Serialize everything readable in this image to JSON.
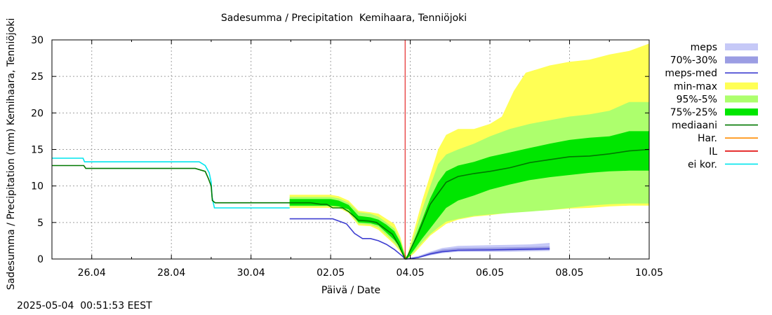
{
  "chart_data": {
    "type": "area",
    "title": "Sadesumma / Precipitation  Kemihaara, Tenniöjoki",
    "xlabel": "Päivä / Date",
    "ylabel": "Sadesumma / Precipitation (mm)  Kemihaara, Tenniöjoki",
    "timestamp": "2025-05-04  00:51:53 EEST",
    "x_unit": "days since 25.04 00:00 (x tick labels printed as dates)",
    "xlim": [
      0,
      15
    ],
    "ylim": [
      0,
      30
    ],
    "x_ticks": [
      {
        "x": 1,
        "label": "26.04"
      },
      {
        "x": 3,
        "label": "28.04"
      },
      {
        "x": 5,
        "label": "30.04"
      },
      {
        "x": 7,
        "label": "02.05"
      },
      {
        "x": 9,
        "label": "04.05"
      },
      {
        "x": 11,
        "label": "06.05"
      },
      {
        "x": 13,
        "label": "08.05"
      },
      {
        "x": 15,
        "label": "10.05"
      }
    ],
    "y_ticks": [
      0,
      5,
      10,
      15,
      20,
      25,
      30
    ],
    "grid": true,
    "legend_position": "right",
    "legend": [
      {
        "label": "meps",
        "kind": "band",
        "color": "#c6c9f7"
      },
      {
        "label": "70%-30%",
        "kind": "band",
        "color": "#9b9de3"
      },
      {
        "label": "meps-med",
        "kind": "line",
        "color": "#3f3fd1"
      },
      {
        "label": "min-max",
        "kind": "band",
        "color": "#ffff55"
      },
      {
        "label": "95%-5%",
        "kind": "band",
        "color": "#adff6d"
      },
      {
        "label": "75%-25%",
        "kind": "band",
        "color": "#00e600"
      },
      {
        "label": "mediaani",
        "kind": "line",
        "color": "#007800"
      },
      {
        "label": "Har.",
        "kind": "line",
        "color": "#ff8c00"
      },
      {
        "label": "IL",
        "kind": "line",
        "color": "#e00000"
      },
      {
        "label": "ei kor.",
        "kind": "line",
        "color": "#00e5ee"
      }
    ],
    "vline_IL_x": 8.87,
    "series": {
      "ei_kor": {
        "x": [
          0,
          0.78,
          0.82,
          3.7,
          3.85,
          3.95,
          4.0,
          4.02,
          4.08,
          5.97
        ],
        "y": [
          13.8,
          13.8,
          13.3,
          13.3,
          12.8,
          11.8,
          10.5,
          8.5,
          7.0,
          7.0
        ]
      },
      "mediaani": {
        "x": [
          0,
          0.8,
          0.85,
          3.6,
          3.85,
          3.93,
          4.0,
          4.03,
          4.1,
          6.5,
          6.75,
          6.9,
          7.05,
          7.3,
          7.45,
          7.7,
          7.95,
          8.15,
          8.35,
          8.55,
          8.7,
          8.87,
          8.9,
          9.05,
          9.2,
          9.35,
          9.5,
          9.7,
          9.9,
          10.2,
          10.6,
          11.0,
          11.5,
          12.0,
          12.5,
          13.0,
          13.5,
          14.0,
          14.5,
          15.0
        ],
        "y": [
          12.8,
          12.8,
          12.4,
          12.4,
          12.0,
          11.0,
          10.0,
          8.0,
          7.7,
          7.7,
          7.5,
          7.5,
          7.0,
          7.0,
          6.5,
          5.3,
          5.2,
          5.0,
          4.2,
          3.4,
          2.0,
          0,
          0,
          1.8,
          3.5,
          5.5,
          7.5,
          9.0,
          10.5,
          11.3,
          11.7,
          12.0,
          12.5,
          13.2,
          13.6,
          14.0,
          14.1,
          14.4,
          14.8,
          15.0
        ]
      },
      "meps_med": {
        "x": [
          5.97,
          6.5,
          7.05,
          7.3,
          7.4,
          7.6,
          7.8,
          8.0,
          8.2,
          8.4,
          8.6,
          8.8,
          8.87,
          8.92,
          9.2,
          9.5,
          9.8,
          10.2,
          11.0,
          11.5,
          12.0,
          12.5
        ],
        "y": [
          5.5,
          5.5,
          5.5,
          5.0,
          4.8,
          3.5,
          2.8,
          2.8,
          2.5,
          2.0,
          1.3,
          0.4,
          0,
          0,
          0.2,
          0.7,
          1.0,
          1.2,
          1.25,
          1.3,
          1.35,
          1.4
        ]
      },
      "min_max": {
        "x": [
          5.97,
          6.5,
          7.0,
          7.2,
          7.45,
          7.7,
          8.0,
          8.2,
          8.4,
          8.6,
          8.75,
          8.87,
          8.92,
          9.1,
          9.3,
          9.5,
          9.7,
          9.9,
          10.2,
          10.6,
          11.0,
          11.3,
          11.6,
          11.9,
          12.2,
          12.5,
          13.0,
          13.5,
          14.0,
          14.5,
          15.0
        ],
        "lower": [
          7.0,
          7.0,
          7.0,
          7.0,
          6.3,
          4.6,
          4.5,
          4.0,
          3.0,
          2.0,
          1.0,
          0,
          0,
          0.8,
          2.0,
          3.2,
          4.0,
          4.8,
          5.4,
          5.8,
          6.0,
          6.2,
          6.4,
          6.5,
          6.6,
          6.7,
          6.9,
          7.0,
          7.2,
          7.3,
          7.3
        ],
        "upper": [
          8.8,
          8.8,
          8.8,
          8.6,
          8.0,
          6.6,
          6.4,
          6.2,
          5.5,
          4.8,
          3.0,
          0.6,
          0.4,
          4.0,
          8.0,
          11.5,
          15.0,
          17.0,
          17.8,
          17.8,
          18.5,
          19.5,
          23.0,
          25.5,
          26.0,
          26.5,
          27.0,
          27.3,
          28.0,
          28.5,
          29.5
        ]
      },
      "p95_5": {
        "x": [
          5.97,
          6.5,
          7.0,
          7.2,
          7.45,
          7.7,
          8.0,
          8.2,
          8.4,
          8.6,
          8.75,
          8.87,
          8.92,
          9.1,
          9.3,
          9.5,
          9.7,
          9.9,
          10.2,
          10.6,
          11.0,
          11.5,
          12.0,
          12.5,
          13.0,
          13.5,
          14.0,
          14.5,
          15.0
        ],
        "lower": [
          7.2,
          7.2,
          7.2,
          7.1,
          6.5,
          4.8,
          4.7,
          4.3,
          3.3,
          2.2,
          1.2,
          0,
          0,
          1.0,
          2.3,
          3.4,
          4.3,
          5.1,
          5.5,
          5.9,
          6.1,
          6.3,
          6.5,
          6.7,
          7.0,
          7.3,
          7.5,
          7.6,
          7.6
        ]
      },
      "p95_5_upper": {
        "x": [
          5.97,
          6.5,
          7.0,
          7.2,
          7.45,
          7.7,
          8.0,
          8.2,
          8.4,
          8.6,
          8.75,
          8.87,
          8.92,
          9.1,
          9.3,
          9.5,
          9.7,
          9.9,
          10.2,
          10.6,
          11.0,
          11.5,
          12.0,
          12.5,
          13.0,
          13.5,
          14.0,
          14.5,
          15.0
        ],
        "y": [
          8.5,
          8.5,
          8.5,
          8.3,
          7.7,
          6.4,
          6.2,
          5.8,
          5.0,
          4.2,
          2.6,
          0.5,
          0.3,
          3.3,
          6.8,
          10.0,
          13.0,
          14.3,
          15.0,
          15.8,
          16.8,
          17.8,
          18.5,
          19.0,
          19.5,
          19.8,
          20.3,
          21.5,
          21.5
        ]
      },
      "p75_25": {
        "x": [
          5.97,
          6.5,
          7.0,
          7.2,
          7.45,
          7.7,
          8.0,
          8.2,
          8.4,
          8.6,
          8.75,
          8.87,
          8.92,
          9.1,
          9.3,
          9.5,
          9.7,
          9.9,
          10.2,
          10.6,
          11.0,
          11.5,
          12.0,
          12.5,
          13.0,
          13.5,
          14.0,
          14.5,
          15.0
        ],
        "lower": [
          7.3,
          7.3,
          7.3,
          7.2,
          6.8,
          5.0,
          4.9,
          4.6,
          3.6,
          2.6,
          1.5,
          0,
          0,
          1.3,
          2.8,
          4.2,
          5.6,
          7.0,
          8.0,
          8.7,
          9.5,
          10.2,
          10.8,
          11.2,
          11.5,
          11.8,
          12.0,
          12.1,
          12.1
        ],
        "upper": [
          8.2,
          8.2,
          8.2,
          8.0,
          7.4,
          5.9,
          5.7,
          5.4,
          4.7,
          3.8,
          2.3,
          0.3,
          0.2,
          2.6,
          5.4,
          8.3,
          10.5,
          12.0,
          12.8,
          13.3,
          14.0,
          14.6,
          15.2,
          15.8,
          16.3,
          16.6,
          16.8,
          17.5,
          17.5
        ]
      },
      "meps": {
        "x": [
          8.92,
          9.2,
          9.5,
          9.8,
          10.2,
          11.0,
          11.5,
          12.0,
          12.5
        ],
        "lower": [
          0,
          0.1,
          0.5,
          0.8,
          1.0,
          1.0,
          1.0,
          1.05,
          1.1
        ],
        "upper": [
          0.1,
          0.4,
          1.0,
          1.5,
          1.8,
          1.9,
          1.95,
          2.0,
          2.2
        ]
      },
      "meps_70_30": {
        "x": [
          8.92,
          9.2,
          9.5,
          9.8,
          10.2,
          11.0,
          11.5,
          12.0,
          12.5
        ],
        "lower": [
          0,
          0.15,
          0.55,
          0.9,
          1.1,
          1.1,
          1.15,
          1.2,
          1.25
        ],
        "upper": [
          0.05,
          0.3,
          0.85,
          1.3,
          1.5,
          1.55,
          1.6,
          1.65,
          1.7
        ]
      }
    }
  }
}
